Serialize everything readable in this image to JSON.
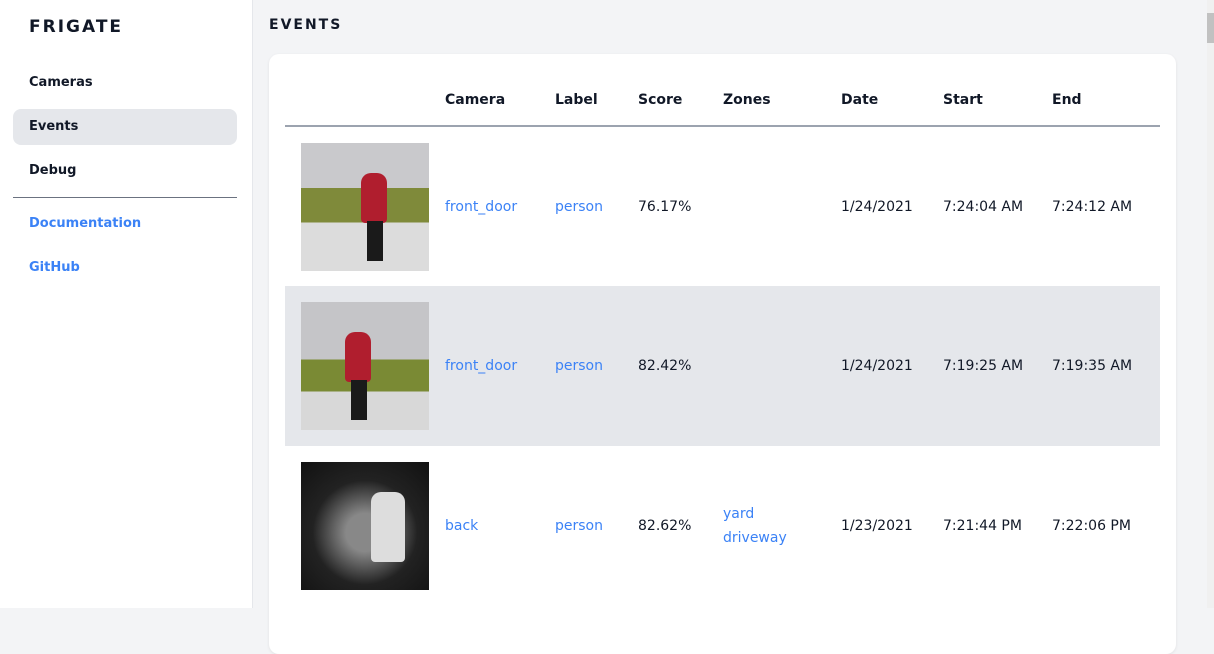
{
  "app": {
    "logo": "FRIGATE"
  },
  "sidebar": {
    "items": [
      {
        "label": "Cameras"
      },
      {
        "label": "Events"
      },
      {
        "label": "Debug"
      }
    ],
    "links": [
      {
        "label": "Documentation"
      },
      {
        "label": "GitHub"
      }
    ]
  },
  "page": {
    "title": "EVENTS"
  },
  "table": {
    "headers": [
      "",
      "Camera",
      "Label",
      "Score",
      "Zones",
      "Date",
      "Start",
      "End"
    ],
    "rows": [
      {
        "camera": "front_door",
        "label": "person",
        "score": "76.17%",
        "zones": [
          "",
          ""
        ],
        "date": "1/24/2021",
        "start": "7:24:04 AM",
        "end": "7:24:12 AM"
      },
      {
        "camera": "front_door",
        "label": "person",
        "score": "82.42%",
        "zones": [
          "",
          ""
        ],
        "date": "1/24/2021",
        "start": "7:19:25 AM",
        "end": "7:19:35 AM"
      },
      {
        "camera": "back",
        "label": "person",
        "score": "82.62%",
        "zones": [
          "yard",
          "driveway"
        ],
        "date": "1/23/2021",
        "start": "7:21:44 PM",
        "end": "7:22:06 PM"
      }
    ]
  },
  "colors": {
    "accent": "#3b82f6",
    "active_bg": "#e5e7eb"
  }
}
